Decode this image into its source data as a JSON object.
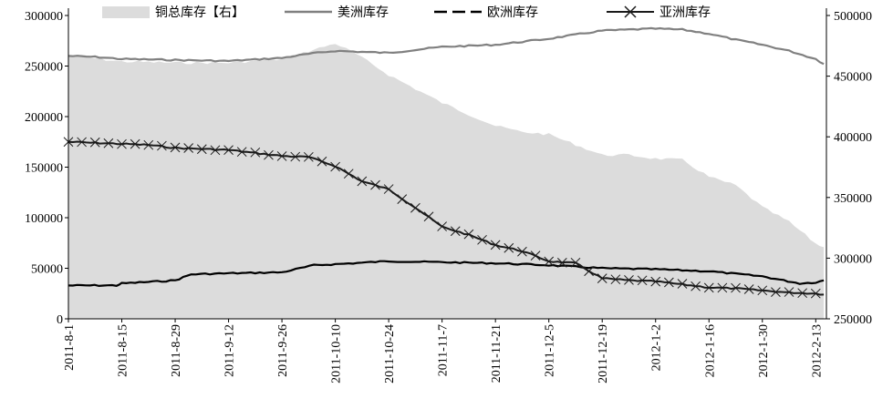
{
  "chart_data": {
    "type": "line",
    "x_categories": [
      "2011-8-1",
      "2011-8-15",
      "2011-8-29",
      "2011-9-12",
      "2011-9-26",
      "2011-10-10",
      "2011-10-24",
      "2011-11-7",
      "2011-11-21",
      "2011-12-5",
      "2011-12-19",
      "2012-1-2",
      "2012-1-16",
      "2012-1-30",
      "2012-2-13"
    ],
    "left_axis": {
      "ylim": [
        0,
        300000
      ],
      "ticks": [
        "300000",
        "250000",
        "200000",
        "150000",
        "100000",
        "50000",
        "0"
      ]
    },
    "right_axis": {
      "ylim": [
        250000,
        500000
      ],
      "ticks": [
        "500000",
        "450000",
        "400000",
        "350000",
        "300000",
        "250000"
      ]
    },
    "legend": {
      "placement": "top"
    },
    "series": [
      {
        "name": "铜总库存【右】",
        "kind": "area",
        "axis": "right",
        "color": "#dcdcdc",
        "x": [
          0,
          1,
          2,
          3,
          4,
          5,
          5.4,
          6,
          7,
          8,
          8.5,
          9,
          10,
          10.5,
          11,
          11.5,
          12,
          12.5,
          13,
          13.5,
          14,
          14.15
        ],
        "values": [
          467000,
          462000,
          461000,
          461000,
          464000,
          477000,
          468000,
          451000,
          428000,
          409000,
          404000,
          402000,
          385000,
          385000,
          382000,
          381000,
          367000,
          360000,
          342000,
          330000,
          312000,
          309000
        ]
      },
      {
        "name": "美洲库存",
        "kind": "line",
        "axis": "left",
        "color": "#808080",
        "x": [
          0,
          0.5,
          1,
          2,
          3,
          4,
          4.5,
          5,
          6,
          6.5,
          7,
          8,
          9,
          9.5,
          10,
          10.5,
          11,
          11.5,
          12,
          12.5,
          13,
          13.5,
          14,
          14.15
        ],
        "values": [
          260000,
          259000,
          257000,
          256000,
          255000,
          258000,
          262000,
          265000,
          263000,
          266000,
          269000,
          271000,
          277000,
          281000,
          285000,
          286000,
          287000,
          286000,
          282000,
          276000,
          271000,
          265000,
          257000,
          252000
        ]
      },
      {
        "name": "欧洲库存",
        "kind": "line",
        "axis": "left",
        "color": "#000000",
        "x": [
          0,
          0.9,
          1,
          2,
          2.3,
          3,
          4,
          4.6,
          5,
          6,
          7,
          8,
          9,
          10,
          11,
          12,
          13,
          13.4,
          13.7,
          14,
          14.15
        ],
        "values": [
          33000,
          33000,
          35000,
          38000,
          44000,
          45000,
          46000,
          53000,
          54000,
          57000,
          56000,
          55000,
          53000,
          50000,
          49000,
          47000,
          42000,
          38000,
          35000,
          36000,
          38000
        ]
      },
      {
        "name": "亚洲库存",
        "kind": "line-marker",
        "axis": "left",
        "color": "#1a1a1a",
        "x": [
          0,
          0.5,
          1,
          1.5,
          2,
          3,
          4,
          4.5,
          5,
          5.5,
          6,
          6.5,
          7,
          7.5,
          8,
          8.5,
          9,
          9.5,
          10,
          10.5,
          11,
          11.5,
          12,
          12.5,
          13,
          13.5,
          14,
          14.15
        ],
        "values": [
          175000,
          174000,
          173000,
          172000,
          169000,
          167000,
          161000,
          160000,
          151000,
          136000,
          128000,
          110000,
          91000,
          83000,
          73000,
          67000,
          57000,
          55000,
          40000,
          38000,
          37000,
          34000,
          31000,
          30000,
          28000,
          26000,
          25000,
          24000
        ]
      }
    ]
  }
}
